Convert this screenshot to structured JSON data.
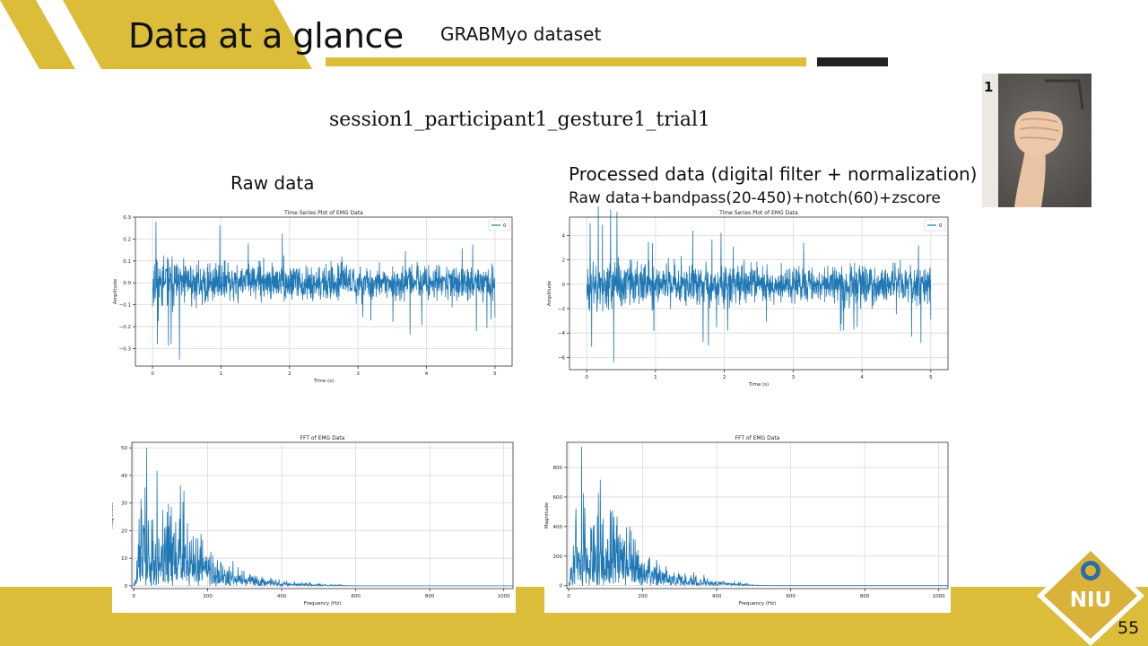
{
  "slide": {
    "title": "Data at a glance",
    "subtitle": "GRABMyo dataset",
    "filename": "session1_participant1_gesture1_trial1",
    "raw_label": "Raw data",
    "processed_label": "Processed data (digital filter + normalization)",
    "processed_desc": "Raw data+bandpass(20-450)+notch(60)+zscore",
    "page_number": "55",
    "photo_number": "1",
    "logo_text": "NIU",
    "colors": {
      "accent": "#dbbd3a",
      "dark": "#222222",
      "line": "#1f77b4"
    }
  },
  "chart_data": [
    {
      "type": "line",
      "title": "Time Series Plot of EMG Data",
      "xlabel": "Time (s)",
      "ylabel": "Amplitude",
      "legend": "0",
      "legend_position": "top-right",
      "xlim": [
        -0.25,
        5.25
      ],
      "ylim": [
        -0.38,
        0.3
      ],
      "xticks": [
        0,
        1,
        2,
        3,
        4,
        5
      ],
      "xticklabels": [
        "0",
        "1",
        "2",
        "3",
        "4",
        "5"
      ],
      "yticks": [
        -0.3,
        -0.2,
        -0.1,
        0.0,
        0.1,
        0.2,
        0.3
      ],
      "yticklabels": [
        "−0.3",
        "−0.2",
        "−0.1",
        "0.0",
        "0.1",
        "0.2",
        "0.3"
      ],
      "grid": true,
      "signal": {
        "kind": "emg",
        "amplitude": 0.055,
        "peak": 0.28,
        "trough": -0.35,
        "duration": 5
      }
    },
    {
      "type": "line",
      "title": "Time Series Plot of EMG Data",
      "xlabel": "Time (s)",
      "ylabel": "Amplitude",
      "legend": "0",
      "legend_position": "top-right",
      "xlim": [
        -0.25,
        5.25
      ],
      "ylim": [
        -7,
        5.5
      ],
      "xticks": [
        0,
        1,
        2,
        3,
        4,
        5
      ],
      "xticklabels": [
        "0",
        "1",
        "2",
        "3",
        "4",
        "5"
      ],
      "yticks": [
        -6,
        -4,
        -2,
        0,
        2,
        4
      ],
      "yticklabels": [
        "−6",
        "−4",
        "−2",
        "0",
        "2",
        "4"
      ],
      "grid": true,
      "signal": {
        "kind": "emg",
        "amplitude": 1.1,
        "peak": 5.0,
        "trough": -6.4,
        "duration": 5
      }
    },
    {
      "type": "line",
      "title": "FFT of EMG Data",
      "xlabel": "Frequency (Hz)",
      "ylabel": "Magnitude",
      "xlim": [
        -5,
        1025
      ],
      "ylim": [
        -1,
        52
      ],
      "xticks": [
        0,
        200,
        400,
        600,
        800,
        1000
      ],
      "xticklabels": [
        "0",
        "200",
        "400",
        "600",
        "800",
        "1000"
      ],
      "yticks": [
        0,
        10,
        20,
        30,
        40,
        50
      ],
      "yticklabels": [
        "0",
        "10",
        "20",
        "30",
        "40",
        "50"
      ],
      "grid": true,
      "signal": {
        "kind": "fft",
        "peak": 50,
        "peak_freq": 35,
        "cutoff": 550,
        "max_freq": 1024
      }
    },
    {
      "type": "line",
      "title": "FFT of EMG Data",
      "xlabel": "Frequency (Hz)",
      "ylabel": "Magnitude",
      "xlim": [
        -5,
        1025
      ],
      "ylim": [
        -20,
        970
      ],
      "xticks": [
        0,
        200,
        400,
        600,
        800,
        1000
      ],
      "xticklabels": [
        "0",
        "200",
        "400",
        "600",
        "800",
        "1000"
      ],
      "yticks": [
        0,
        200,
        400,
        600,
        800
      ],
      "yticklabels": [
        "0",
        "200",
        "400",
        "600",
        "800"
      ],
      "grid": true,
      "signal": {
        "kind": "fft",
        "peak": 940,
        "peak_freq": 35,
        "cutoff": 480,
        "max_freq": 1024
      }
    }
  ]
}
